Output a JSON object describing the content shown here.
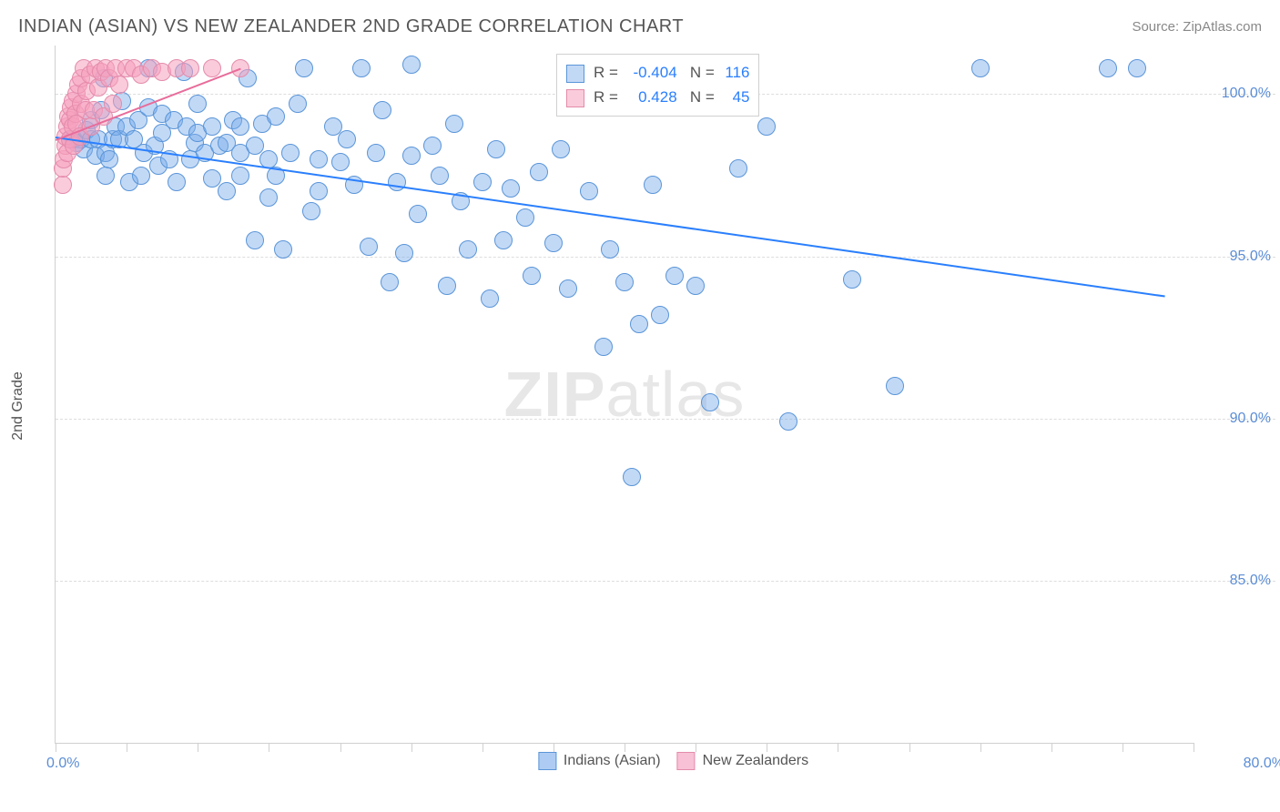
{
  "title": "INDIAN (ASIAN) VS NEW ZEALANDER 2ND GRADE CORRELATION CHART",
  "source": "Source: ZipAtlas.com",
  "watermark_a": "ZIP",
  "watermark_b": "atlas",
  "chart": {
    "type": "scatter",
    "ylabel": "2nd Grade",
    "xlim": [
      0,
      80
    ],
    "ylim": [
      80,
      101.5
    ],
    "xtick_step": 5,
    "yticks": [
      85,
      90,
      95,
      100
    ],
    "ytick_labels": [
      "85.0%",
      "90.0%",
      "95.0%",
      "100.0%"
    ],
    "xlabel_min": "0.0%",
    "xlabel_max": "80.0%",
    "grid_color": "#dddddd",
    "background_color": "#ffffff",
    "marker_radius": 10,
    "series": [
      {
        "name": "Indians (Asian)",
        "fill": "rgba(120,170,235,0.45)",
        "stroke": "#5a95d8",
        "reg_color": "#2a7fff",
        "reg_line": {
          "x0": 0,
          "y0": 98.7,
          "x1": 78,
          "y1": 93.8
        },
        "R": "-0.404",
        "N": "116",
        "points": [
          [
            1,
            98.6
          ],
          [
            1.3,
            98.6
          ],
          [
            1.5,
            98.5
          ],
          [
            1.8,
            98.6
          ],
          [
            2,
            98.3
          ],
          [
            2.2,
            98.9
          ],
          [
            2.5,
            98.6
          ],
          [
            2.5,
            99.2
          ],
          [
            2.8,
            98.1
          ],
          [
            3,
            98.6
          ],
          [
            3.2,
            99.5
          ],
          [
            3.4,
            100.5
          ],
          [
            3.5,
            97.5
          ],
          [
            3.5,
            98.2
          ],
          [
            3.8,
            98.0
          ],
          [
            4,
            98.6
          ],
          [
            4.2,
            99.0
          ],
          [
            4.5,
            98.6
          ],
          [
            4.7,
            99.8
          ],
          [
            5,
            99.0
          ],
          [
            5.2,
            97.3
          ],
          [
            5.5,
            98.6
          ],
          [
            5.8,
            99.2
          ],
          [
            6,
            97.5
          ],
          [
            6.2,
            98.2
          ],
          [
            6.5,
            99.6
          ],
          [
            6.5,
            100.8
          ],
          [
            7,
            98.4
          ],
          [
            7.2,
            97.8
          ],
          [
            7.5,
            98.8
          ],
          [
            7.5,
            99.4
          ],
          [
            8,
            98.0
          ],
          [
            8.3,
            99.2
          ],
          [
            8.5,
            97.3
          ],
          [
            9,
            100.7
          ],
          [
            9.2,
            99.0
          ],
          [
            9.5,
            98.0
          ],
          [
            9.8,
            98.5
          ],
          [
            10,
            98.8
          ],
          [
            10,
            99.7
          ],
          [
            10.5,
            98.2
          ],
          [
            11,
            99.0
          ],
          [
            11,
            97.4
          ],
          [
            11.5,
            98.4
          ],
          [
            12,
            97.0
          ],
          [
            12,
            98.5
          ],
          [
            12.5,
            99.2
          ],
          [
            13,
            97.5
          ],
          [
            13,
            98.2
          ],
          [
            13,
            99.0
          ],
          [
            13.5,
            100.5
          ],
          [
            14,
            95.5
          ],
          [
            14,
            98.4
          ],
          [
            14.5,
            99.1
          ],
          [
            15,
            98.0
          ],
          [
            15,
            96.8
          ],
          [
            15.5,
            97.5
          ],
          [
            15.5,
            99.3
          ],
          [
            16,
            95.2
          ],
          [
            16.5,
            98.2
          ],
          [
            17,
            99.7
          ],
          [
            17.5,
            100.8
          ],
          [
            18,
            96.4
          ],
          [
            18.5,
            98.0
          ],
          [
            18.5,
            97.0
          ],
          [
            19.5,
            99.0
          ],
          [
            20,
            97.9
          ],
          [
            20.5,
            98.6
          ],
          [
            21,
            97.2
          ],
          [
            21.5,
            100.8
          ],
          [
            22,
            95.3
          ],
          [
            22.5,
            98.2
          ],
          [
            23,
            99.5
          ],
          [
            23.5,
            94.2
          ],
          [
            24,
            97.3
          ],
          [
            24.5,
            95.1
          ],
          [
            25,
            98.1
          ],
          [
            25,
            100.9
          ],
          [
            25.5,
            96.3
          ],
          [
            26.5,
            98.4
          ],
          [
            27,
            97.5
          ],
          [
            27.5,
            94.1
          ],
          [
            28,
            99.1
          ],
          [
            28.5,
            96.7
          ],
          [
            29,
            95.2
          ],
          [
            30,
            97.3
          ],
          [
            30.5,
            93.7
          ],
          [
            31,
            98.3
          ],
          [
            31.5,
            95.5
          ],
          [
            32,
            97.1
          ],
          [
            33,
            96.2
          ],
          [
            33.5,
            94.4
          ],
          [
            34,
            97.6
          ],
          [
            35,
            95.4
          ],
          [
            35.5,
            98.3
          ],
          [
            36,
            94.0
          ],
          [
            37,
            100.8
          ],
          [
            37.5,
            97.0
          ],
          [
            38.5,
            92.2
          ],
          [
            39,
            95.2
          ],
          [
            40,
            94.2
          ],
          [
            40.5,
            88.2
          ],
          [
            41,
            92.9
          ],
          [
            42,
            97.2
          ],
          [
            42.5,
            93.2
          ],
          [
            43.5,
            94.4
          ],
          [
            44,
            100.8
          ],
          [
            45,
            94.1
          ],
          [
            46,
            90.5
          ],
          [
            48,
            97.7
          ],
          [
            50,
            99.0
          ],
          [
            51.5,
            89.9
          ],
          [
            56,
            94.3
          ],
          [
            59,
            91.0
          ],
          [
            65,
            100.8
          ],
          [
            74,
            100.8
          ],
          [
            76,
            100.8
          ]
        ]
      },
      {
        "name": "New Zealanders",
        "fill": "rgba(245,160,190,0.55)",
        "stroke": "#e48bab",
        "reg_color": "#e86c9a",
        "reg_line": {
          "x0": 0,
          "y0": 98.6,
          "x1": 13,
          "y1": 100.8
        },
        "R": "0.428",
        "N": "45",
        "points": [
          [
            0.5,
            97.2
          ],
          [
            0.5,
            97.7
          ],
          [
            0.6,
            98.0
          ],
          [
            0.7,
            98.4
          ],
          [
            0.7,
            98.7
          ],
          [
            0.8,
            99.0
          ],
          [
            0.8,
            98.2
          ],
          [
            0.9,
            99.3
          ],
          [
            1.0,
            98.6
          ],
          [
            1.0,
            99.2
          ],
          [
            1.1,
            99.6
          ],
          [
            1.2,
            99.0
          ],
          [
            1.2,
            99.8
          ],
          [
            1.3,
            98.4
          ],
          [
            1.4,
            99.4
          ],
          [
            1.5,
            100.0
          ],
          [
            1.5,
            99.1
          ],
          [
            1.6,
            100.3
          ],
          [
            1.7,
            98.7
          ],
          [
            1.8,
            99.7
          ],
          [
            1.8,
            100.5
          ],
          [
            2.0,
            100.8
          ],
          [
            2.1,
            99.5
          ],
          [
            2.2,
            100.1
          ],
          [
            2.4,
            100.6
          ],
          [
            2.5,
            99.0
          ],
          [
            2.7,
            99.5
          ],
          [
            2.8,
            100.8
          ],
          [
            3.0,
            100.2
          ],
          [
            3.2,
            100.7
          ],
          [
            3.4,
            99.3
          ],
          [
            3.5,
            100.8
          ],
          [
            3.8,
            100.5
          ],
          [
            4.0,
            99.7
          ],
          [
            4.2,
            100.8
          ],
          [
            4.5,
            100.3
          ],
          [
            5.0,
            100.8
          ],
          [
            5.5,
            100.8
          ],
          [
            6.0,
            100.6
          ],
          [
            6.8,
            100.8
          ],
          [
            7.5,
            100.7
          ],
          [
            8.5,
            100.8
          ],
          [
            9.5,
            100.8
          ],
          [
            11,
            100.8
          ],
          [
            13,
            100.8
          ]
        ]
      }
    ],
    "stats_box": {
      "left_pct": 44,
      "top_pct": 1.2
    },
    "legend": [
      {
        "label": "Indians (Asian)",
        "fill": "rgba(120,170,235,0.6)",
        "stroke": "#5a95d8"
      },
      {
        "label": "New Zealanders",
        "fill": "rgba(245,160,190,0.65)",
        "stroke": "#e48bab"
      }
    ]
  }
}
